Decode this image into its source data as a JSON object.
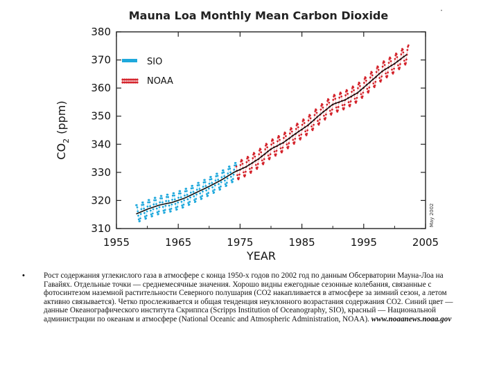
{
  "chart_data": {
    "type": "scatter",
    "title": "Mauna Loa Monthly Mean Carbon Dioxide",
    "xlabel": "YEAR",
    "ylabel": "CO",
    "ylabel_sub": "2",
    "ylabel_unit": "(ppm)",
    "xlim": [
      1955,
      2005
    ],
    "ylim": [
      310,
      380
    ],
    "x_ticks": [
      1955,
      1965,
      1975,
      1985,
      1995,
      2005
    ],
    "y_ticks": [
      310,
      320,
      330,
      340,
      350,
      360,
      370,
      380
    ],
    "legend_position": "top-left",
    "stamp": "May 2002",
    "trend": {
      "x": [
        1958.2,
        1960,
        1962,
        1964,
        1966,
        1968,
        1970,
        1972,
        1974,
        1976,
        1978,
        1980,
        1982,
        1984,
        1986,
        1988,
        1990,
        1992,
        1994,
        1996,
        1998,
        2000,
        2002
      ],
      "y": [
        315.2,
        316.9,
        318.4,
        319.3,
        320.8,
        322.9,
        325.0,
        327.3,
        330.0,
        332.0,
        334.8,
        338.3,
        340.6,
        343.8,
        346.8,
        350.7,
        354.2,
        355.8,
        358.3,
        362.1,
        366.0,
        368.7,
        372.0
      ]
    },
    "seasonal_amplitude_ppm": 3.2,
    "series": [
      {
        "name": "SIO",
        "color": "#1ea8dc",
        "x_start": 1958.2,
        "x_end": 1974.4
      },
      {
        "name": "NOAA",
        "color": "#d4232b",
        "x_start": 1974.4,
        "x_end": 2002.3
      }
    ]
  },
  "caption": {
    "bullet": "•",
    "text": "Рост содержания углекислого газа в атмосфере с конца 1950-х годов по 2002 год по данным Обсерватории Мауна-Лоа на Гавайях. Отдельные точки — среднемесячные значения. Хорошо видны ежегодные сезонные колебания, связанные с фотосинтезом наземной растительности Северного полушария (CO2 накапливается в атмосфере за зимний сезон, а летом активно связывается). Четко прослеживается и общая тенденция неуклонного возрастания содержания CO2. Синий цвет — данные Океанографического института Скриппса (Scripps Institution of Oceanography, SIO), красный — Национальной администрации по океанам и атмосфере (National Oceanic and Atmospheric Administration, NOAA).",
    "link": "www.noaanews.noaa.gov"
  }
}
